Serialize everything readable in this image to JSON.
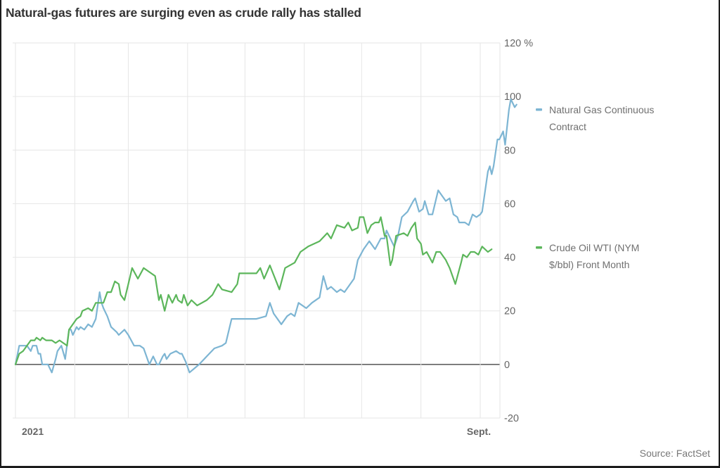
{
  "chart_data": {
    "type": "line",
    "title": "Natural-gas futures are surging even as crude rally has stalled",
    "source": "Source: FactSet",
    "xlabel": "",
    "ylabel": "",
    "x_unit": "day of year 2021",
    "xlim": [
      0,
      254
    ],
    "ylim": [
      -20,
      120
    ],
    "y_ticks": [
      {
        "value": 120,
        "label": "120 %"
      },
      {
        "value": 100,
        "label": "100"
      },
      {
        "value": 80,
        "label": "80"
      },
      {
        "value": 60,
        "label": "60"
      },
      {
        "value": 40,
        "label": "40"
      },
      {
        "value": 20,
        "label": "20"
      },
      {
        "value": 0,
        "label": "0"
      },
      {
        "value": -20,
        "label": "-20"
      }
    ],
    "x_gridlines": [
      0,
      31,
      59,
      90,
      120,
      151,
      181,
      212,
      243
    ],
    "x_tick_labels": [
      {
        "x": 0,
        "label": "2021"
      },
      {
        "x": 243,
        "label": "Sept."
      }
    ],
    "grid": true,
    "legend_placement": "right",
    "series": [
      {
        "name": "Natural Gas Continuous Contract",
        "color": "#7db5d3",
        "points": [
          [
            0,
            0
          ],
          [
            2,
            7
          ],
          [
            4,
            7
          ],
          [
            6,
            7
          ],
          [
            8,
            5
          ],
          [
            9,
            7
          ],
          [
            11,
            7
          ],
          [
            12,
            4
          ],
          [
            13,
            4
          ],
          [
            14,
            0
          ],
          [
            15,
            0
          ],
          [
            17,
            0
          ],
          [
            19,
            -3
          ],
          [
            21,
            2
          ],
          [
            22,
            5
          ],
          [
            24,
            7
          ],
          [
            26,
            2
          ],
          [
            28,
            13
          ],
          [
            29,
            13
          ],
          [
            30,
            11
          ],
          [
            32,
            14
          ],
          [
            33,
            13
          ],
          [
            34,
            14
          ],
          [
            36,
            13
          ],
          [
            38,
            15
          ],
          [
            40,
            14
          ],
          [
            42,
            17
          ],
          [
            44,
            27
          ],
          [
            45,
            23
          ],
          [
            46,
            21
          ],
          [
            48,
            18
          ],
          [
            50,
            14
          ],
          [
            53,
            12
          ],
          [
            54,
            11
          ],
          [
            57,
            13
          ],
          [
            59,
            11
          ],
          [
            62,
            7
          ],
          [
            64,
            7
          ],
          [
            65,
            7
          ],
          [
            67,
            6
          ],
          [
            69,
            2
          ],
          [
            70,
            0
          ],
          [
            72,
            3
          ],
          [
            74,
            0
          ],
          [
            75,
            0
          ],
          [
            77,
            3
          ],
          [
            78,
            4
          ],
          [
            79,
            2
          ],
          [
            81,
            4
          ],
          [
            84,
            5
          ],
          [
            86,
            4
          ],
          [
            87,
            4
          ],
          [
            89,
            1
          ],
          [
            91,
            -3
          ],
          [
            96,
            0
          ],
          [
            100,
            3
          ],
          [
            104,
            6
          ],
          [
            108,
            7
          ],
          [
            110,
            8
          ],
          [
            113,
            17
          ],
          [
            117,
            17
          ],
          [
            120,
            17
          ],
          [
            126,
            17
          ],
          [
            131,
            18
          ],
          [
            133,
            23
          ],
          [
            135,
            19
          ],
          [
            139,
            15
          ],
          [
            142,
            18
          ],
          [
            144,
            19
          ],
          [
            146,
            18
          ],
          [
            148,
            23
          ],
          [
            152,
            21
          ],
          [
            155,
            23
          ],
          [
            159,
            25
          ],
          [
            161,
            33
          ],
          [
            163,
            28
          ],
          [
            165,
            29
          ],
          [
            168,
            27
          ],
          [
            170,
            28
          ],
          [
            172,
            27
          ],
          [
            177,
            32
          ],
          [
            179,
            39
          ],
          [
            182,
            43
          ],
          [
            185,
            46
          ],
          [
            188,
            43
          ],
          [
            191,
            47
          ],
          [
            193,
            47
          ],
          [
            194,
            50
          ],
          [
            198,
            44
          ],
          [
            200,
            48
          ],
          [
            202,
            55
          ],
          [
            205,
            57
          ],
          [
            208,
            61
          ],
          [
            209,
            62
          ],
          [
            211,
            57
          ],
          [
            213,
            58
          ],
          [
            214,
            61
          ],
          [
            216,
            56
          ],
          [
            218,
            56
          ],
          [
            221,
            65
          ],
          [
            222,
            64
          ],
          [
            225,
            61
          ],
          [
            227,
            62
          ],
          [
            229,
            56
          ],
          [
            231,
            55
          ],
          [
            232,
            53
          ],
          [
            235,
            53
          ],
          [
            237,
            52
          ],
          [
            239,
            56
          ],
          [
            241,
            55
          ],
          [
            243,
            56
          ],
          [
            244,
            57
          ],
          [
            247,
            72
          ],
          [
            248,
            74
          ],
          [
            249,
            71
          ],
          [
            250,
            74
          ],
          [
            252,
            84
          ],
          [
            253,
            84
          ],
          [
            255,
            87
          ],
          [
            256,
            82
          ],
          [
            258,
            95
          ],
          [
            259,
            99
          ],
          [
            261,
            96
          ],
          [
            262,
            97
          ]
        ]
      },
      {
        "name": "Crude Oil WTI (NYM $/bbl) Front Month",
        "color": "#5cb65b",
        "points": [
          [
            0,
            0
          ],
          [
            2,
            4
          ],
          [
            4,
            5
          ],
          [
            6,
            7
          ],
          [
            8,
            9
          ],
          [
            10,
            9
          ],
          [
            11,
            10
          ],
          [
            13,
            9
          ],
          [
            14,
            10
          ],
          [
            16,
            9
          ],
          [
            17,
            9
          ],
          [
            19,
            9
          ],
          [
            21,
            8
          ],
          [
            23,
            9
          ],
          [
            25,
            8
          ],
          [
            27,
            7
          ],
          [
            28,
            13
          ],
          [
            30,
            15
          ],
          [
            32,
            17
          ],
          [
            34,
            18
          ],
          [
            35,
            20
          ],
          [
            38,
            21
          ],
          [
            40,
            20
          ],
          [
            42,
            23
          ],
          [
            46,
            23
          ],
          [
            48,
            27
          ],
          [
            50,
            27
          ],
          [
            52,
            31
          ],
          [
            54,
            30
          ],
          [
            55,
            26
          ],
          [
            57,
            24
          ],
          [
            59,
            30
          ],
          [
            61,
            36
          ],
          [
            64,
            32
          ],
          [
            67,
            36
          ],
          [
            71,
            34
          ],
          [
            73,
            33
          ],
          [
            75,
            24
          ],
          [
            76,
            26
          ],
          [
            78,
            20
          ],
          [
            80,
            26
          ],
          [
            82,
            23
          ],
          [
            84,
            26
          ],
          [
            85,
            24
          ],
          [
            87,
            23
          ],
          [
            88,
            26
          ],
          [
            90,
            22
          ],
          [
            92,
            24
          ],
          [
            95,
            22
          ],
          [
            100,
            24
          ],
          [
            103,
            26
          ],
          [
            106,
            30
          ],
          [
            108,
            28
          ],
          [
            113,
            27
          ],
          [
            116,
            30
          ],
          [
            117,
            34
          ],
          [
            122,
            34
          ],
          [
            126,
            34
          ],
          [
            128,
            36
          ],
          [
            130,
            32
          ],
          [
            133,
            37
          ],
          [
            138,
            28
          ],
          [
            141,
            36
          ],
          [
            146,
            38
          ],
          [
            149,
            42
          ],
          [
            153,
            44
          ],
          [
            159,
            46
          ],
          [
            163,
            49
          ],
          [
            165,
            47
          ],
          [
            168,
            52
          ],
          [
            172,
            51
          ],
          [
            174,
            53
          ],
          [
            176,
            50
          ],
          [
            179,
            51
          ],
          [
            180,
            55
          ],
          [
            182,
            55
          ],
          [
            184,
            49
          ],
          [
            186,
            52
          ],
          [
            188,
            53
          ],
          [
            190,
            53
          ],
          [
            191,
            55
          ],
          [
            193,
            48
          ],
          [
            194,
            48
          ],
          [
            196,
            37
          ],
          [
            197,
            39
          ],
          [
            199,
            48
          ],
          [
            203,
            49
          ],
          [
            205,
            48
          ],
          [
            207,
            51
          ],
          [
            209,
            53
          ],
          [
            210,
            47
          ],
          [
            212,
            45
          ],
          [
            213,
            41
          ],
          [
            215,
            42
          ],
          [
            218,
            38
          ],
          [
            220,
            42
          ],
          [
            222,
            42
          ],
          [
            225,
            39
          ],
          [
            227,
            36
          ],
          [
            230,
            30
          ],
          [
            233,
            38
          ],
          [
            234,
            41
          ],
          [
            236,
            40
          ],
          [
            238,
            42
          ],
          [
            240,
            42
          ],
          [
            242,
            41
          ],
          [
            244,
            44
          ],
          [
            247,
            42
          ],
          [
            249,
            43
          ]
        ]
      }
    ]
  }
}
